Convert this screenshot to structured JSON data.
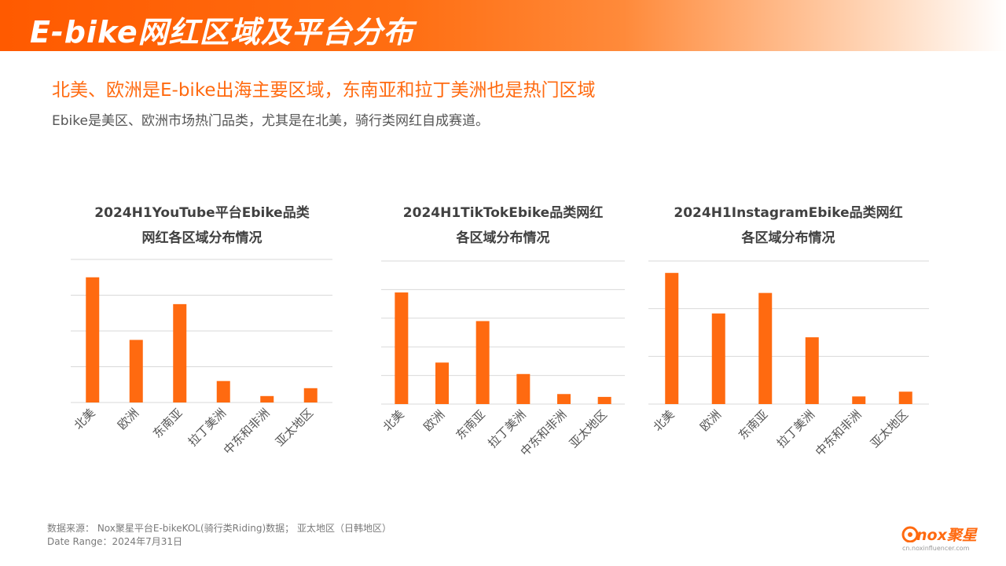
{
  "banner": {
    "title": "E-bike网红区域及平台分布"
  },
  "headline": "北美、欧洲是E-bike出海主要区域，东南亚和拉丁美洲也是热门区域",
  "subhead": "Ebike是美区、欧洲市场热门品类，尤其是在北美，骑行类网红自成赛道。",
  "colors": {
    "accent": "#ff6a10",
    "bar": "#ff6a10",
    "grid": "#d9d9d9"
  },
  "chart_data": [
    {
      "type": "bar",
      "title_line1": "2024H1YouTube平台Ebike品类",
      "title_line2": "网红各区域分布情况",
      "categories": [
        "北美",
        "欧洲",
        "东南亚",
        "拉丁美洲",
        "中东和非洲",
        "亚太地区"
      ],
      "values": [
        35,
        17.5,
        27.5,
        6,
        1.8,
        4
      ],
      "ylim": [
        0,
        40
      ],
      "gridlines": [
        0,
        10,
        20,
        30,
        40
      ],
      "grid": true,
      "yaxis_labels": false
    },
    {
      "type": "bar",
      "title_line1": "2024H1TikTokEbike品类网红",
      "title_line2": "各区域分布情况",
      "categories": [
        "北美",
        "欧洲",
        "东南亚",
        "拉丁美洲",
        "中东和非洲",
        "亚太地区"
      ],
      "values": [
        39,
        14.5,
        29,
        10.5,
        3.5,
        2.5
      ],
      "ylim": [
        0,
        50
      ],
      "gridlines": [
        0,
        10,
        20,
        30,
        40,
        50
      ],
      "grid": true,
      "yaxis_labels": false
    },
    {
      "type": "bar",
      "title_line1": "2024H1InstagramEbike品类网红",
      "title_line2": "各区域分布情况",
      "categories": [
        "北美",
        "欧洲",
        "东南亚",
        "拉丁美洲",
        "中东和非洲",
        "亚太地区"
      ],
      "values": [
        27.5,
        19,
        23.3,
        14,
        1.6,
        2.6
      ],
      "ylim": [
        0,
        30
      ],
      "gridlines": [
        0,
        10,
        20,
        30
      ],
      "grid": true,
      "yaxis_labels": false
    }
  ],
  "footer": {
    "source": "数据来源：  Nox聚星平台E-bikeKOL(骑行类Riding)数据；  亚太地区（日韩地区）",
    "date_range": "Date Range：2024年7月31日"
  },
  "logo": {
    "word": "nox聚星",
    "url": "cn.noxinfluencer.com"
  }
}
